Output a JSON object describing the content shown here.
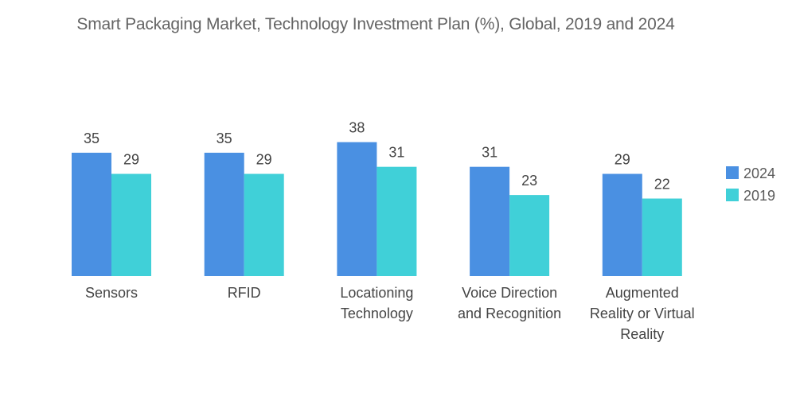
{
  "chart_data": {
    "type": "bar",
    "title": "Smart Packaging Market, Technology Investment Plan (%), Global, 2019 and 2024",
    "categories": [
      [
        "Sensors"
      ],
      [
        "RFID"
      ],
      [
        "Locationing",
        "Technology"
      ],
      [
        "Voice Direction",
        "and Recognition"
      ],
      [
        "Augmented",
        "Reality or Virtual",
        "Reality"
      ]
    ],
    "category_names": [
      "Sensors",
      "RFID",
      "Locationing Technology",
      "Voice Direction and Recognition",
      "Augmented Reality or Virtual Reality"
    ],
    "series": [
      {
        "name": "2024",
        "color": "#4a90e2",
        "values": [
          35,
          35,
          38,
          31,
          29
        ]
      },
      {
        "name": "2019",
        "color": "#40d0d8",
        "values": [
          29,
          29,
          31,
          23,
          22
        ]
      }
    ],
    "xlabel": "",
    "ylabel": "",
    "ylim": [
      0,
      40
    ],
    "grid": false,
    "legend": "right",
    "data_labels": true
  }
}
